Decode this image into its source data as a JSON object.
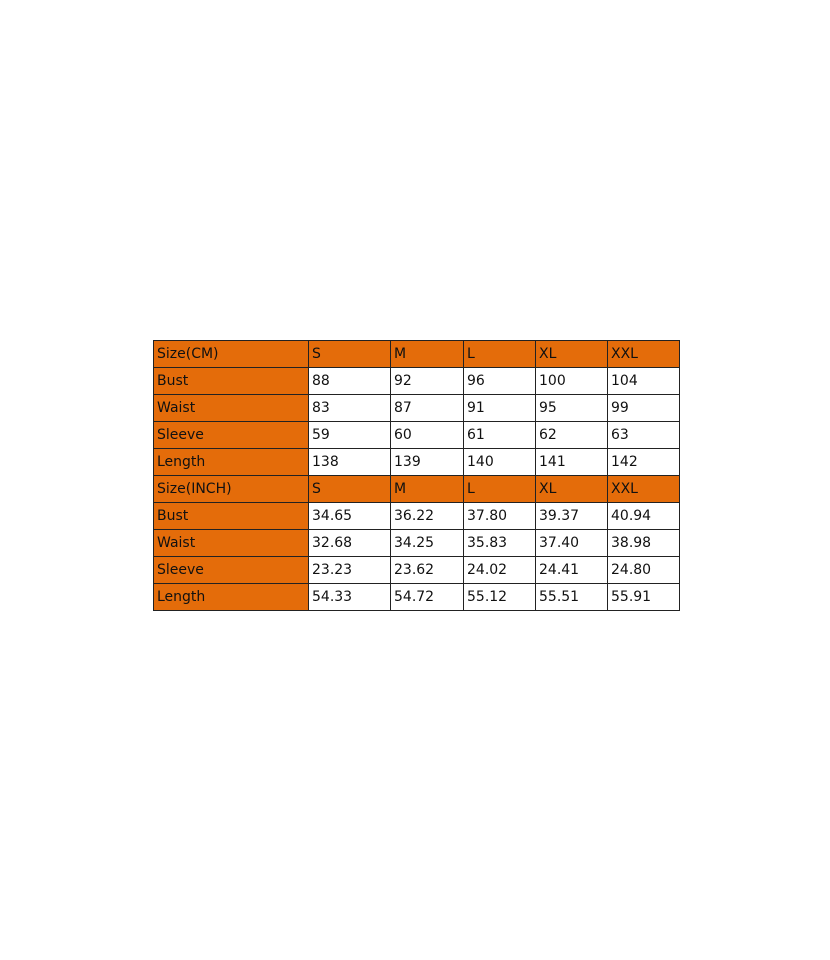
{
  "colors": {
    "header_fill": "#E46C0A",
    "cell_fill": "#FFFFFF"
  },
  "cm": {
    "header": [
      "Size(CM)",
      "S",
      "M",
      "L",
      "XL",
      "XXL"
    ],
    "rows": [
      [
        "Bust",
        "88",
        "92",
        "96",
        "100",
        "104"
      ],
      [
        "Waist",
        "83",
        "87",
        "91",
        "95",
        "99"
      ],
      [
        "Sleeve",
        "59",
        "60",
        "61",
        "62",
        "63"
      ],
      [
        "Length",
        "138",
        "139",
        "140",
        "141",
        "142"
      ]
    ]
  },
  "inch": {
    "header": [
      "Size(INCH)",
      "S",
      "M",
      "L",
      "XL",
      "XXL"
    ],
    "rows": [
      [
        "Bust",
        "34.65",
        "36.22",
        "37.80",
        "39.37",
        "40.94"
      ],
      [
        "Waist",
        "32.68",
        "34.25",
        "35.83",
        "37.40",
        "38.98"
      ],
      [
        "Sleeve",
        "23.23",
        "23.62",
        "24.02",
        "24.41",
        "24.80"
      ],
      [
        "Length",
        "54.33",
        "54.72",
        "55.12",
        "55.51",
        "55.91"
      ]
    ]
  }
}
